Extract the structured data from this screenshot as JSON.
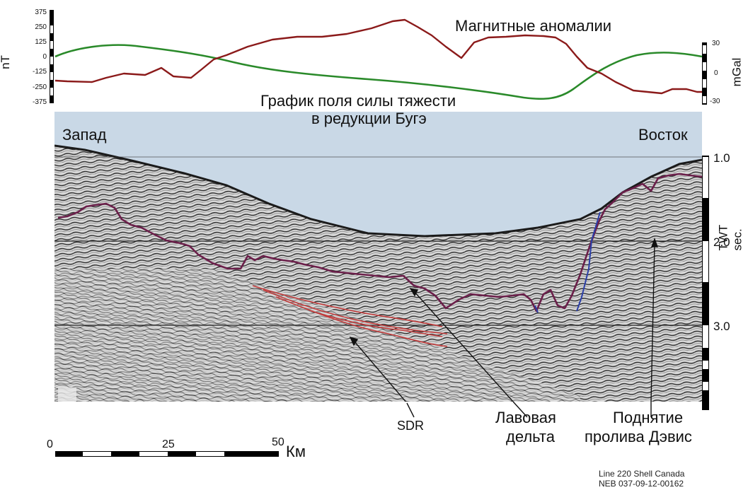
{
  "titles": {
    "magnetic": "Магнитные аномалии",
    "gravity_line1": "График поля силы тяжести",
    "gravity_line2": "в редукции Бугэ"
  },
  "directions": {
    "west": "Запад",
    "east": "Восток"
  },
  "left_axis": {
    "unit": "nT",
    "ticks": [
      "375",
      "250",
      "125",
      "0",
      "-125",
      "-250",
      "-375"
    ]
  },
  "right_axis_top": {
    "unit": "mGal",
    "ticks": [
      "30",
      "0",
      "-30"
    ]
  },
  "twt_axis": {
    "unit": "TWT sec.",
    "ticks": [
      "1.0",
      "2.0",
      "3.0"
    ]
  },
  "annotations": {
    "sdr": "SDR",
    "lava_line1": "Лавовая",
    "lava_line2": "дельта",
    "uplift_line1": "Поднятие",
    "uplift_line2": "пролива Дэвис"
  },
  "scale_bar": {
    "ticks": [
      "0",
      "25",
      "50"
    ],
    "unit": "Км"
  },
  "credit": {
    "line1": "Line 220 Shell Canada",
    "line2": "NEB 037-09-12-00162"
  },
  "colors": {
    "magnetic": "#8b1a1a",
    "gravity": "#2a8a2a",
    "water": "#c9d8e6",
    "horizon": "#6b1f4a",
    "sdr": "#c23b3b",
    "fault": "#2b3fa8"
  }
}
